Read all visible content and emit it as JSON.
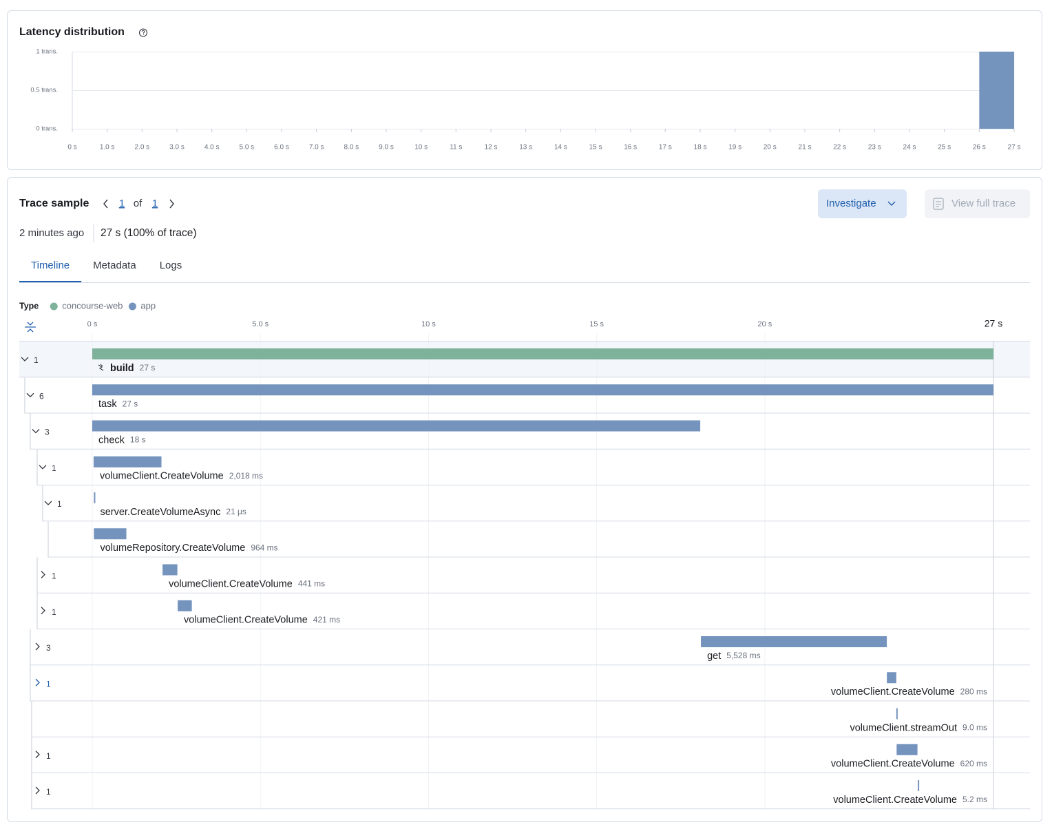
{
  "chart_data": {
    "type": "histogram",
    "title": "Latency distribution",
    "bins": [
      26,
      27
    ],
    "values": [
      1
    ],
    "color": "#7493bd",
    "xlim": [
      0,
      27
    ],
    "ylim": [
      0,
      1
    ],
    "xticks": [
      {
        "value": 0,
        "label": "0 s"
      },
      {
        "value": 1,
        "label": "1.0 s"
      },
      {
        "value": 2,
        "label": "2.0 s"
      },
      {
        "value": 3,
        "label": "3.0 s"
      },
      {
        "value": 4,
        "label": "4.0 s"
      },
      {
        "value": 5,
        "label": "5.0 s"
      },
      {
        "value": 6,
        "label": "6.0 s"
      },
      {
        "value": 7,
        "label": "7.0 s"
      },
      {
        "value": 8,
        "label": "8.0 s"
      },
      {
        "value": 9,
        "label": "9.0 s"
      },
      {
        "value": 10,
        "label": "10 s"
      },
      {
        "value": 11,
        "label": "11 s"
      },
      {
        "value": 12,
        "label": "12 s"
      },
      {
        "value": 13,
        "label": "13 s"
      },
      {
        "value": 14,
        "label": "14 s"
      },
      {
        "value": 15,
        "label": "15 s"
      },
      {
        "value": 16,
        "label": "16 s"
      },
      {
        "value": 17,
        "label": "17 s"
      },
      {
        "value": 18,
        "label": "18 s"
      },
      {
        "value": 19,
        "label": "19 s"
      },
      {
        "value": 20,
        "label": "20 s"
      },
      {
        "value": 21,
        "label": "21 s"
      },
      {
        "value": 22,
        "label": "22 s"
      },
      {
        "value": 23,
        "label": "23 s"
      },
      {
        "value": 24,
        "label": "24 s"
      },
      {
        "value": 25,
        "label": "25 s"
      },
      {
        "value": 26,
        "label": "26 s"
      },
      {
        "value": 27,
        "label": "27 s"
      }
    ],
    "yticks": [
      {
        "value": 0,
        "label": "0 trans."
      },
      {
        "value": 0.5,
        "label": "0.5 trans."
      },
      {
        "value": 1,
        "label": "1 trans."
      }
    ],
    "grid": true
  },
  "trace": {
    "title": "Trace sample",
    "pager": {
      "current": 1,
      "of": "of",
      "total": 1
    },
    "actions": {
      "investigate": "Investigate",
      "view_full_trace": "View full trace"
    },
    "age": "2 minutes ago",
    "duration": "27 s (100% of trace)",
    "tabs": [
      "Timeline",
      "Metadata",
      "Logs"
    ],
    "active_tab": 0,
    "legend": {
      "title": "Type",
      "items": [
        {
          "name": "concourse-web",
          "color": "#7fb29a"
        },
        {
          "name": "app",
          "color": "#7493bd"
        }
      ]
    },
    "timeline": {
      "xlim": [
        0,
        26.8
      ],
      "xticks": [
        {
          "value": 0,
          "label": "0 s"
        },
        {
          "value": 5,
          "label": "5.0 s"
        },
        {
          "value": 10,
          "label": "10 s"
        },
        {
          "value": 15,
          "label": "15 s"
        },
        {
          "value": 20,
          "label": "20 s"
        },
        {
          "value": 26.8,
          "label": "27 s"
        }
      ],
      "grid": true
    },
    "spans": [
      {
        "count": 1,
        "expanded": true,
        "service": "concourse-web",
        "name": "build",
        "start": 0,
        "duration": 26.8,
        "duration_label": "27 s"
      },
      {
        "count": 6,
        "expanded": true,
        "service": "app",
        "name": "task",
        "start": 0,
        "duration": 26.8,
        "duration_label": "27 s"
      },
      {
        "count": 3,
        "expanded": true,
        "service": "app",
        "name": "check",
        "start": 0,
        "duration": 18.08,
        "duration_label": "18 s"
      },
      {
        "count": 1,
        "expanded": true,
        "service": "app",
        "name": "volumeClient.CreateVolume",
        "start": 0.04,
        "duration": 2.018,
        "duration_label": "2,018 ms"
      },
      {
        "count": 1,
        "expanded": true,
        "service": "app",
        "name": "server.CreateVolumeAsync",
        "start": 0.05,
        "duration": 2.1e-05,
        "duration_label": "21 μs"
      },
      {
        "count": null,
        "expanded": false,
        "service": "app",
        "name": "volumeRepository.CreateVolume",
        "start": 0.05,
        "duration": 0.964,
        "duration_label": "964 ms"
      },
      {
        "count": 1,
        "expanded": false,
        "service": "app",
        "name": "volumeClient.CreateVolume",
        "start": 2.09,
        "duration": 0.441,
        "duration_label": "441 ms"
      },
      {
        "count": 1,
        "expanded": false,
        "service": "app",
        "name": "volumeClient.CreateVolume",
        "start": 2.54,
        "duration": 0.421,
        "duration_label": "421 ms"
      },
      {
        "count": 3,
        "expanded": false,
        "service": "app",
        "name": "get",
        "start": 18.1,
        "duration": 5.528,
        "duration_label": "5,528 ms"
      },
      {
        "count": 1,
        "expanded": false,
        "service": "app",
        "name": "volumeClient.CreateVolume",
        "start": 23.63,
        "duration": 0.28,
        "duration_label": "280 ms"
      },
      {
        "count": null,
        "expanded": false,
        "service": "app",
        "name": "volumeClient.streamOut",
        "start": 23.91,
        "duration": 0.009,
        "duration_label": "9.0 ms"
      },
      {
        "count": 1,
        "expanded": false,
        "service": "app",
        "name": "volumeClient.CreateVolume",
        "start": 23.92,
        "duration": 0.62,
        "duration_label": "620 ms"
      },
      {
        "count": 1,
        "expanded": false,
        "service": "app",
        "name": "volumeClient.CreateVolume",
        "start": 24.55,
        "duration": 0.0052,
        "duration_label": "5.2 ms"
      }
    ]
  }
}
